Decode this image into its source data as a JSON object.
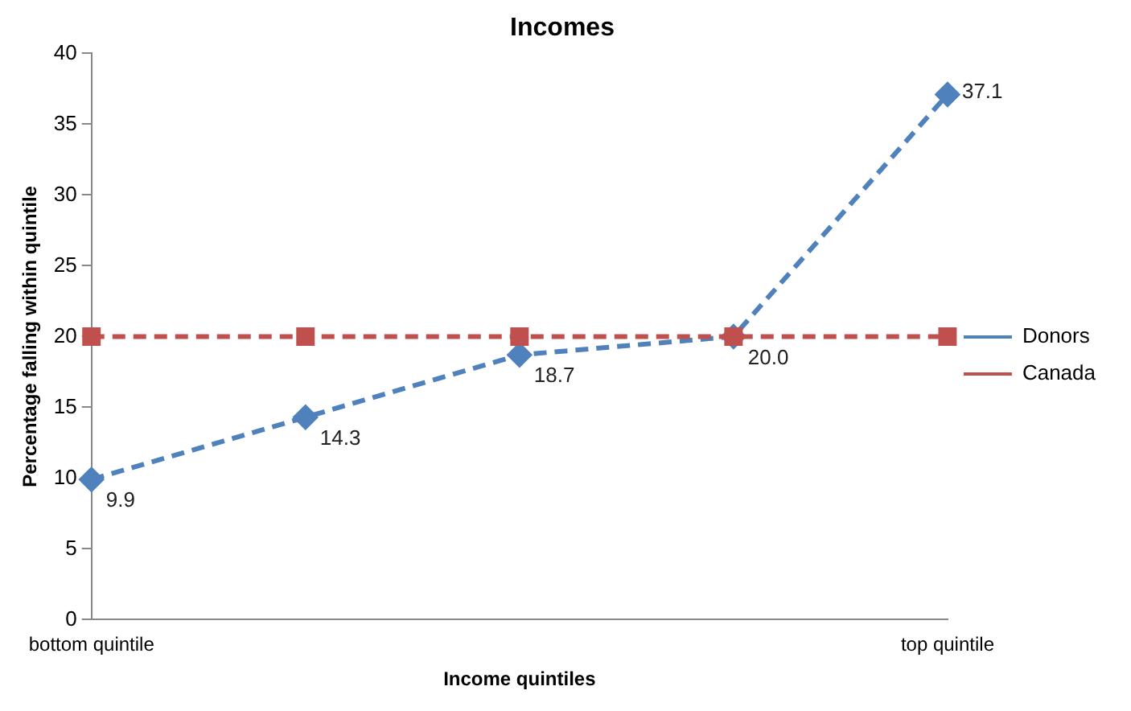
{
  "chart_data": {
    "type": "line",
    "title": "Incomes",
    "xlabel": "Income quintiles",
    "ylabel": "Percentage falling within quintile",
    "categories": [
      "bottom quintile",
      null,
      null,
      null,
      "top quintile"
    ],
    "series": [
      {
        "name": "Donors",
        "color": "#4f81bd",
        "values": [
          9.9,
          14.3,
          18.7,
          20.0,
          37.1
        ],
        "value_labels": [
          "9.9",
          "14.3",
          "18.7",
          "20.0",
          "37.1"
        ],
        "marker": "diamond",
        "line_style": "dashed"
      },
      {
        "name": "Canada",
        "color": "#c0504d",
        "values": [
          20,
          20,
          20,
          20,
          20
        ],
        "marker": "square",
        "line_style": "dashed"
      }
    ],
    "ylim": [
      0,
      40
    ],
    "yticks": [
      0,
      5,
      10,
      15,
      20,
      25,
      30,
      35,
      40
    ],
    "grid": false,
    "legend": "right"
  }
}
